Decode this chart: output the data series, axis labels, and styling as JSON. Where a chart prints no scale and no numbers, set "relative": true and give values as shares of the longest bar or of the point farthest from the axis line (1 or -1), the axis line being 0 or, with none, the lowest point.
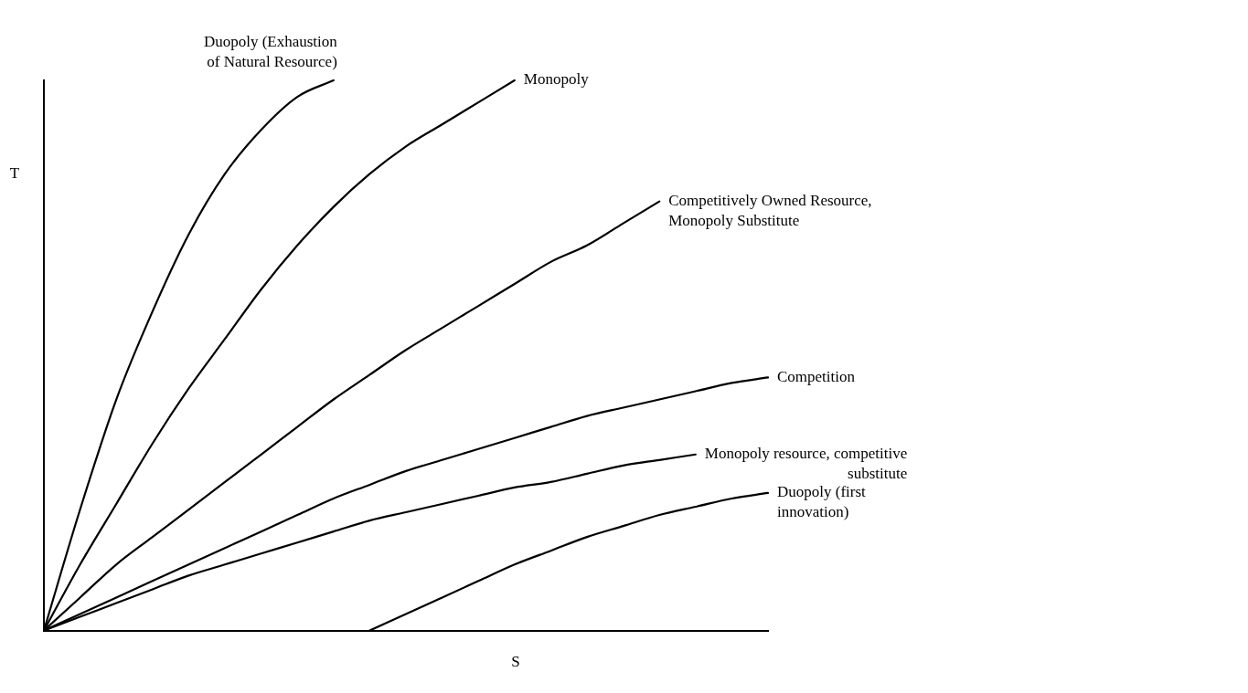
{
  "chart_data": {
    "type": "line",
    "relative": true,
    "xlabel": "S",
    "ylabel": "T",
    "legend": false,
    "marker": "none",
    "line_style": "solid",
    "grid": false,
    "categories": [
      null,
      null,
      null,
      null,
      null,
      null,
      null,
      null,
      null,
      null,
      null,
      null,
      null,
      null,
      null,
      null,
      null,
      null,
      null,
      null,
      null
    ],
    "series": [
      {
        "name": "Duopoly (Exhaustion\nof Natural Resource)",
        "color": "#000000",
        "values": [
          0,
          0.22,
          0.42,
          0.58,
          0.72,
          0.83,
          0.91,
          0.97,
          1.0,
          null,
          null,
          null,
          null,
          null,
          null,
          null,
          null,
          null,
          null,
          null,
          null
        ]
      },
      {
        "name": "Monopoly",
        "color": "#000000",
        "values": [
          0,
          0.12,
          0.23,
          0.34,
          0.44,
          0.53,
          0.62,
          0.7,
          0.77,
          0.83,
          0.88,
          0.92,
          0.96,
          1.0,
          null,
          null,
          null,
          null,
          null,
          null,
          null
        ]
      },
      {
        "name": "Competitively Owned Resource,\nMonopoly Substitute",
        "color": "#000000",
        "values": [
          0,
          0.06,
          0.12,
          0.17,
          0.22,
          0.27,
          0.32,
          0.37,
          0.42,
          0.465,
          0.51,
          0.55,
          0.59,
          0.63,
          0.67,
          0.7,
          0.74,
          0.78,
          null,
          null,
          null
        ]
      },
      {
        "name": "Competition",
        "color": "#000000",
        "values": [
          0,
          0.03,
          0.06,
          0.09,
          0.12,
          0.15,
          0.18,
          0.21,
          0.24,
          0.265,
          0.29,
          0.31,
          0.33,
          0.35,
          0.37,
          0.39,
          0.405,
          0.42,
          0.435,
          0.45,
          0.46
        ]
      },
      {
        "name": "Monopoly resource, competitive\nsubstitute",
        "color": "#000000",
        "values": [
          0,
          0.025,
          0.05,
          0.075,
          0.1,
          0.12,
          0.14,
          0.16,
          0.18,
          0.2,
          0.215,
          0.23,
          0.245,
          0.26,
          0.27,
          0.285,
          0.3,
          0.31,
          0.32,
          null,
          null
        ]
      },
      {
        "name": "Duopoly (first\ninnovation)",
        "color": "#000000",
        "values": [
          null,
          null,
          null,
          null,
          null,
          null,
          null,
          null,
          null,
          0,
          0.03,
          0.06,
          0.09,
          0.12,
          0.145,
          0.17,
          0.19,
          0.21,
          0.225,
          0.24,
          0.25
        ]
      }
    ]
  }
}
